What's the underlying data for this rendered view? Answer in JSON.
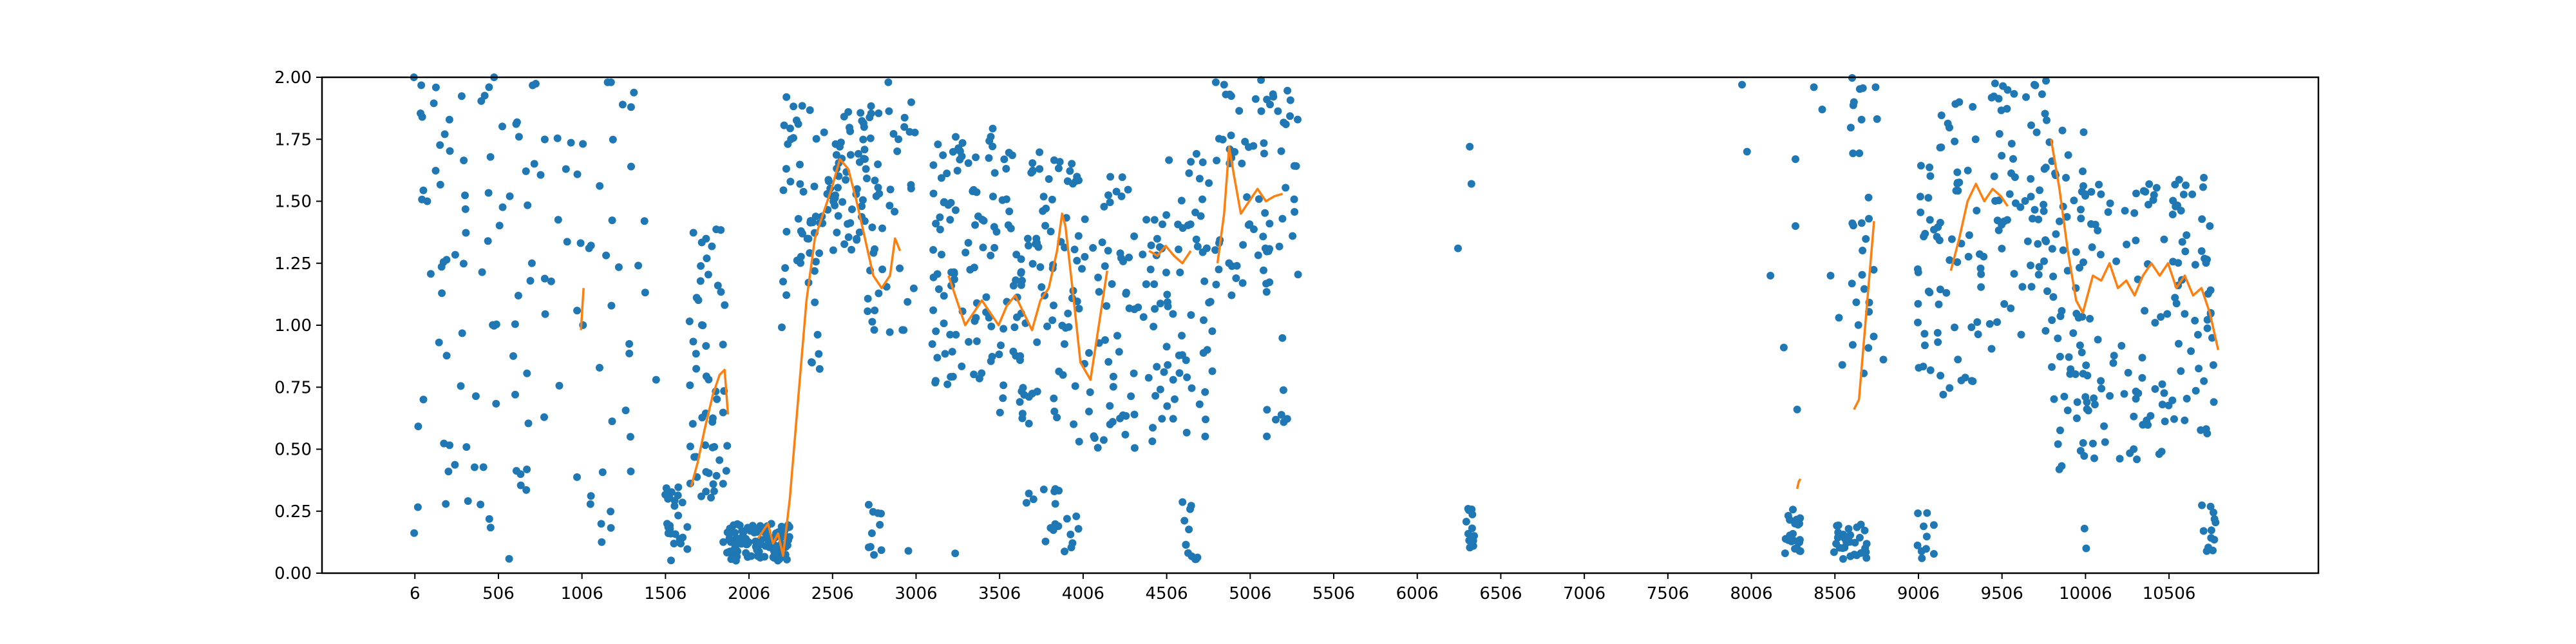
{
  "chart_data": {
    "type": "scatter",
    "title": "",
    "xlabel": "",
    "ylabel": "",
    "xlim": [
      -550,
      11400
    ],
    "ylim": [
      0,
      2.0
    ],
    "xticks": [
      6,
      506,
      1006,
      1506,
      2006,
      2506,
      3006,
      3506,
      4006,
      4506,
      5006,
      5506,
      6006,
      6506,
      7006,
      7506,
      8006,
      8506,
      9006,
      9506,
      10006,
      10506
    ],
    "xtick_labels": [
      "6",
      "506",
      "1006",
      "1506",
      "2006",
      "2506",
      "3006",
      "3506",
      "4006",
      "4506",
      "5006",
      "5506",
      "6006",
      "6506",
      "7006",
      "7506",
      "8006",
      "8506",
      "9006",
      "9506",
      "10006",
      "10506"
    ],
    "yticks": [
      0,
      0.25,
      0.5,
      0.75,
      1.0,
      1.25,
      1.5,
      1.75,
      2.0
    ],
    "ytick_labels": [
      "0.00",
      "0.25",
      "0.50",
      "0.75",
      "1.00",
      "1.25",
      "1.50",
      "1.75",
      "2.00"
    ],
    "grid": false,
    "legend": "none",
    "colors": {
      "points": "#1f77b4",
      "line": "#ff7f0e"
    },
    "point_clusters": [
      {
        "x": [
          0,
          500
        ],
        "y": [
          0.0,
          2.0
        ],
        "n": 55
      },
      {
        "x": [
          500,
          1050
        ],
        "y": [
          0.05,
          2.0
        ],
        "n": 45
      },
      {
        "x": [
          1050,
          1400
        ],
        "y": [
          0.1,
          2.0
        ],
        "n": 25
      },
      {
        "x": [
          1500,
          1650
        ],
        "y": [
          0.05,
          0.35
        ],
        "n": 25
      },
      {
        "x": [
          1650,
          1880
        ],
        "y": [
          0.3,
          1.4
        ],
        "n": 55
      },
      {
        "x": [
          1850,
          2250
        ],
        "y": [
          0.05,
          0.2
        ],
        "n": 110
      },
      {
        "x": [
          2200,
          2450
        ],
        "y": [
          0.8,
          1.9
        ],
        "n": 50
      },
      {
        "x": [
          2450,
          2700
        ],
        "y": [
          1.3,
          1.9
        ],
        "n": 55
      },
      {
        "x": [
          2700,
          3000
        ],
        "y": [
          0.95,
          1.9
        ],
        "n": 45
      },
      {
        "x": [
          2700,
          2800
        ],
        "y": [
          0.07,
          0.28
        ],
        "n": 10
      },
      {
        "x": [
          3100,
          3500
        ],
        "y": [
          0.75,
          1.8
        ],
        "n": 90
      },
      {
        "x": [
          3500,
          3950
        ],
        "y": [
          0.6,
          1.7
        ],
        "n": 95
      },
      {
        "x": [
          3650,
          3990
        ],
        "y": [
          0.07,
          0.35
        ],
        "n": 20
      },
      {
        "x": [
          3950,
          4500
        ],
        "y": [
          0.5,
          1.6
        ],
        "n": 90
      },
      {
        "x": [
          4500,
          4800
        ],
        "y": [
          0.5,
          1.7
        ],
        "n": 55
      },
      {
        "x": [
          4600,
          4700
        ],
        "y": [
          0.05,
          0.3
        ],
        "n": 12
      },
      {
        "x": [
          4800,
          5300
        ],
        "y": [
          1.1,
          2.0
        ],
        "n": 70
      },
      {
        "x": [
          5100,
          5250
        ],
        "y": [
          0.55,
          1.0
        ],
        "n": 8
      },
      {
        "x": [
          6290,
          6350
        ],
        "y": [
          0.08,
          0.26
        ],
        "n": 12
      },
      {
        "x": [
          8200,
          8300
        ],
        "y": [
          0.08,
          0.26
        ],
        "n": 22
      },
      {
        "x": [
          8500,
          8700
        ],
        "y": [
          0.05,
          0.2
        ],
        "n": 30
      },
      {
        "x": [
          8600,
          8800
        ],
        "y": [
          0.8,
          2.0
        ],
        "n": 30
      },
      {
        "x": [
          9000,
          9100
        ],
        "y": [
          0.05,
          0.25
        ],
        "n": 10
      },
      {
        "x": [
          9000,
          9400
        ],
        "y": [
          0.7,
          1.9
        ],
        "n": 70
      },
      {
        "x": [
          9400,
          9800
        ],
        "y": [
          0.9,
          2.0
        ],
        "n": 65
      },
      {
        "x": [
          9800,
          10000
        ],
        "y": [
          0.4,
          1.8
        ],
        "n": 55
      },
      {
        "x": [
          10000,
          10500
        ],
        "y": [
          0.45,
          1.6
        ],
        "n": 75
      },
      {
        "x": [
          10500,
          10750
        ],
        "y": [
          0.55,
          1.6
        ],
        "n": 45
      },
      {
        "x": [
          10700,
          10800
        ],
        "y": [
          0.08,
          0.28
        ],
        "n": 12
      },
      {
        "x": [
          10730,
          10800
        ],
        "y": [
          0.6,
          1.15
        ],
        "n": 8
      }
    ],
    "point_outliers": [
      [
        0,
        2.0
      ],
      [
        450,
        1.96
      ],
      [
        480,
        2.0
      ],
      [
        1160,
        1.98
      ],
      [
        1180,
        1.98
      ],
      [
        2230,
        1.92
      ],
      [
        2840,
        1.98
      ],
      [
        2600,
        1.86
      ],
      [
        4800,
        1.98
      ],
      [
        4850,
        1.97
      ],
      [
        6250,
        1.31
      ],
      [
        6320,
        1.72
      ],
      [
        6330,
        1.57
      ],
      [
        7950,
        1.97
      ],
      [
        7980,
        1.7
      ],
      [
        8120,
        1.2
      ],
      [
        8200,
        0.91
      ],
      [
        8270,
        1.67
      ],
      [
        8270,
        1.4
      ],
      [
        8280,
        0.66
      ],
      [
        8380,
        1.96
      ],
      [
        8430,
        1.87
      ],
      [
        8480,
        1.2
      ],
      [
        8530,
        1.03
      ],
      [
        8550,
        0.84
      ],
      [
        8620,
        1.9
      ],
      [
        9250,
        1.9
      ],
      [
        9650,
        1.92
      ],
      [
        9700,
        1.97
      ],
      [
        10010,
        0.1
      ],
      [
        10000,
        0.18
      ],
      [
        10750,
        1.4
      ],
      [
        1250,
        1.89
      ],
      [
        1300,
        1.88
      ],
      [
        1450,
        0.78
      ],
      [
        1380,
        1.42
      ],
      [
        50,
        1.84
      ],
      [
        80,
        1.5
      ],
      [
        2960,
        0.09
      ],
      [
        3240,
        0.08
      ]
    ],
    "line_segments": [
      [
        [
          1000,
          0.98
        ],
        [
          1008,
          1.07
        ],
        [
          1016,
          1.15
        ]
      ],
      [
        [
          1660,
          0.35
        ],
        [
          1700,
          0.45
        ],
        [
          1740,
          0.58
        ],
        [
          1790,
          0.72
        ],
        [
          1830,
          0.8
        ],
        [
          1860,
          0.82
        ],
        [
          1880,
          0.64
        ]
      ],
      [
        [
          2060,
          0.14
        ],
        [
          2100,
          0.18
        ],
        [
          2120,
          0.2
        ],
        [
          2150,
          0.12
        ],
        [
          2180,
          0.16
        ],
        [
          2210,
          0.07
        ],
        [
          2250,
          0.3
        ],
        [
          2300,
          0.7
        ],
        [
          2350,
          1.1
        ],
        [
          2400,
          1.35
        ],
        [
          2450,
          1.45
        ],
        [
          2500,
          1.55
        ],
        [
          2550,
          1.67
        ],
        [
          2600,
          1.63
        ],
        [
          2650,
          1.5
        ],
        [
          2700,
          1.35
        ],
        [
          2750,
          1.2
        ],
        [
          2800,
          1.15
        ],
        [
          2850,
          1.2
        ],
        [
          2880,
          1.35
        ],
        [
          2910,
          1.3
        ]
      ],
      [
        [
          3200,
          1.2
        ],
        [
          3250,
          1.1
        ],
        [
          3300,
          1.0
        ],
        [
          3350,
          1.05
        ],
        [
          3400,
          1.1
        ],
        [
          3450,
          1.05
        ],
        [
          3500,
          1.0
        ],
        [
          3550,
          1.08
        ],
        [
          3600,
          1.12
        ],
        [
          3650,
          1.05
        ],
        [
          3700,
          0.98
        ],
        [
          3750,
          1.1
        ],
        [
          3800,
          1.15
        ],
        [
          3850,
          1.3
        ],
        [
          3880,
          1.45
        ],
        [
          3900,
          1.4
        ],
        [
          3950,
          1.1
        ],
        [
          3990,
          0.85
        ],
        [
          4050,
          0.78
        ],
        [
          4100,
          1.0
        ],
        [
          4150,
          1.22
        ]
      ],
      [
        [
          4400,
          1.3
        ],
        [
          4450,
          1.28
        ],
        [
          4500,
          1.32
        ],
        [
          4550,
          1.28
        ],
        [
          4600,
          1.25
        ],
        [
          4650,
          1.3
        ]
      ],
      [
        [
          4810,
          1.25
        ],
        [
          4850,
          1.45
        ],
        [
          4880,
          1.72
        ],
        [
          4910,
          1.6
        ],
        [
          4950,
          1.45
        ],
        [
          5000,
          1.5
        ],
        [
          5050,
          1.55
        ],
        [
          5100,
          1.5
        ],
        [
          5150,
          1.52
        ],
        [
          5200,
          1.53
        ]
      ],
      [
        [
          8280,
          0.34
        ],
        [
          8290,
          0.37
        ],
        [
          8300,
          0.38
        ]
      ],
      [
        [
          8620,
          0.66
        ],
        [
          8650,
          0.7
        ],
        [
          8700,
          1.1
        ],
        [
          8740,
          1.42
        ]
      ],
      [
        [
          9200,
          1.22
        ],
        [
          9250,
          1.35
        ],
        [
          9300,
          1.5
        ],
        [
          9350,
          1.57
        ],
        [
          9400,
          1.5
        ],
        [
          9450,
          1.55
        ],
        [
          9500,
          1.52
        ],
        [
          9540,
          1.48
        ]
      ],
      [
        [
          9800,
          1.75
        ],
        [
          9850,
          1.55
        ],
        [
          9900,
          1.3
        ],
        [
          9950,
          1.1
        ],
        [
          9990,
          1.05
        ],
        [
          10050,
          1.2
        ],
        [
          10100,
          1.18
        ],
        [
          10150,
          1.25
        ],
        [
          10200,
          1.15
        ],
        [
          10250,
          1.18
        ],
        [
          10300,
          1.12
        ],
        [
          10350,
          1.2
        ],
        [
          10400,
          1.25
        ],
        [
          10450,
          1.2
        ],
        [
          10500,
          1.25
        ],
        [
          10550,
          1.15
        ],
        [
          10600,
          1.2
        ],
        [
          10650,
          1.12
        ],
        [
          10700,
          1.15
        ],
        [
          10750,
          1.05
        ],
        [
          10800,
          0.9
        ]
      ]
    ]
  }
}
